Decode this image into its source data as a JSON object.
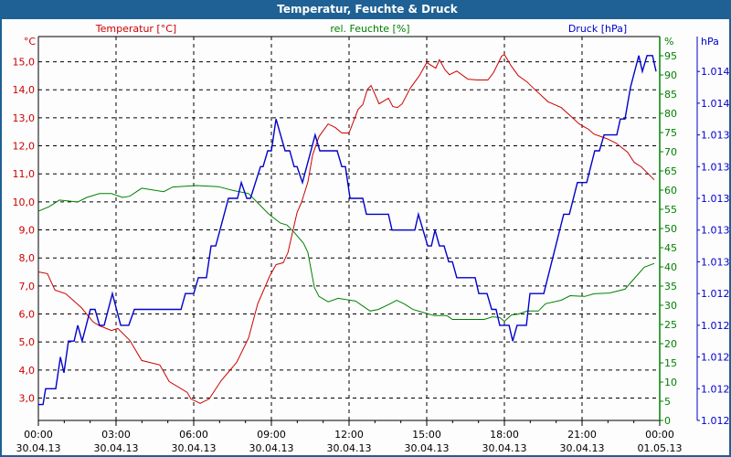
{
  "window": {
    "title": "Temperatur, Feuchte & Druck"
  },
  "colors": {
    "temperature": "#cc0000",
    "humidity": "#008000",
    "pressure": "#0000cc",
    "titlebar": "#1f6194",
    "grid": "#000000"
  },
  "chart_data": {
    "type": "line",
    "title": "Temperatur, Feuchte & Druck",
    "grid": true,
    "x": {
      "unit": "hours since 30.04.13 00:00",
      "range": [
        0,
        24
      ],
      "ticks": [
        {
          "time": "00:00",
          "date": "30.04.13"
        },
        {
          "time": "03:00",
          "date": "30.04.13"
        },
        {
          "time": "06:00",
          "date": "30.04.13"
        },
        {
          "time": "09:00",
          "date": "30.04.13"
        },
        {
          "time": "12:00",
          "date": "30.04.13"
        },
        {
          "time": "15:00",
          "date": "30.04.13"
        },
        {
          "time": "18:00",
          "date": "30.04.13"
        },
        {
          "time": "21:00",
          "date": "30.04.13"
        },
        {
          "time": "00:00",
          "date": "01.05.13"
        }
      ]
    },
    "axes": {
      "temperature": {
        "legend": "Temperatur [°C]",
        "unit": "°C",
        "side": "left",
        "ticks": [
          "3,0",
          "4,0",
          "5,0",
          "6,0",
          "7,0",
          "8,0",
          "9,0",
          "10,0",
          "11,0",
          "12,0",
          "13,0",
          "14,0",
          "15,0"
        ],
        "range": [
          2.2,
          15.9
        ]
      },
      "humidity": {
        "legend": "rel. Feuchte [%]",
        "unit": "%",
        "side": "right",
        "ticks": [
          "0",
          "5",
          "10",
          "15",
          "20",
          "25",
          "30",
          "35",
          "40",
          "45",
          "50",
          "55",
          "60",
          "65",
          "70",
          "75",
          "80",
          "85",
          "90",
          "95"
        ],
        "range": [
          0,
          100
        ]
      },
      "pressure": {
        "legend": "Druck [hPa]",
        "unit": "hPa",
        "side": "far-right",
        "ticks": [
          "1.012",
          "1.012",
          "1.012",
          "1.012",
          "1.012",
          "1.013",
          "1.013",
          "1.013",
          "1.013",
          "1.013",
          "1.014",
          "1.014"
        ],
        "range": [
          1.0116,
          1.01402
        ]
      }
    },
    "series": [
      {
        "name": "Temperatur [°C]",
        "axis": "temperature",
        "points": [
          [
            0,
            7.5
          ],
          [
            0.35,
            7.44
          ],
          [
            0.64,
            6.85
          ],
          [
            1.06,
            6.72
          ],
          [
            1.66,
            6.23
          ],
          [
            2.12,
            5.71
          ],
          [
            2.36,
            5.58
          ],
          [
            2.82,
            5.41
          ],
          [
            3.07,
            5.48
          ],
          [
            3.53,
            5.06
          ],
          [
            3.99,
            4.34
          ],
          [
            4.69,
            4.18
          ],
          [
            5.05,
            3.59
          ],
          [
            5.75,
            3.2
          ],
          [
            5.89,
            2.97
          ],
          [
            6.25,
            2.81
          ],
          [
            6.6,
            2.97
          ],
          [
            7.06,
            3.62
          ],
          [
            7.66,
            4.27
          ],
          [
            8.12,
            5.15
          ],
          [
            8.47,
            6.36
          ],
          [
            8.93,
            7.34
          ],
          [
            9.18,
            7.76
          ],
          [
            9.46,
            7.83
          ],
          [
            9.64,
            8.19
          ],
          [
            9.99,
            9.62
          ],
          [
            10.16,
            9.98
          ],
          [
            10.41,
            10.7
          ],
          [
            10.59,
            11.67
          ],
          [
            10.84,
            12.33
          ],
          [
            11.19,
            12.78
          ],
          [
            11.47,
            12.65
          ],
          [
            11.72,
            12.46
          ],
          [
            12.0,
            12.46
          ],
          [
            12.35,
            13.3
          ],
          [
            12.53,
            13.47
          ],
          [
            12.71,
            14.02
          ],
          [
            12.85,
            14.15
          ],
          [
            13.16,
            13.5
          ],
          [
            13.52,
            13.7
          ],
          [
            13.69,
            13.4
          ],
          [
            13.87,
            13.37
          ],
          [
            14.05,
            13.5
          ],
          [
            14.36,
            14.05
          ],
          [
            14.72,
            14.51
          ],
          [
            15.0,
            14.97
          ],
          [
            15.35,
            14.77
          ],
          [
            15.49,
            15.07
          ],
          [
            15.71,
            14.71
          ],
          [
            15.88,
            14.54
          ],
          [
            16.16,
            14.67
          ],
          [
            16.59,
            14.38
          ],
          [
            16.94,
            14.35
          ],
          [
            17.36,
            14.35
          ],
          [
            17.58,
            14.61
          ],
          [
            17.89,
            15.2
          ],
          [
            18.0,
            15.26
          ],
          [
            18.25,
            14.87
          ],
          [
            18.53,
            14.51
          ],
          [
            18.88,
            14.28
          ],
          [
            19.13,
            14.05
          ],
          [
            19.69,
            13.57
          ],
          [
            20.19,
            13.37
          ],
          [
            20.54,
            13.08
          ],
          [
            20.89,
            12.78
          ],
          [
            21.25,
            12.59
          ],
          [
            21.46,
            12.42
          ],
          [
            21.95,
            12.26
          ],
          [
            22.31,
            12.1
          ],
          [
            22.76,
            11.77
          ],
          [
            23.01,
            11.41
          ],
          [
            23.29,
            11.25
          ],
          [
            23.79,
            10.79
          ]
        ]
      },
      {
        "name": "rel. Feuchte [%]",
        "axis": "humidity",
        "points": [
          [
            0,
            54.5
          ],
          [
            0.42,
            55.7
          ],
          [
            0.81,
            57.4
          ],
          [
            1.52,
            56.9
          ],
          [
            1.87,
            58.1
          ],
          [
            2.36,
            59.1
          ],
          [
            2.82,
            59.1
          ],
          [
            3.25,
            58.1
          ],
          [
            3.53,
            58.4
          ],
          [
            3.99,
            60.5
          ],
          [
            4.84,
            59.6
          ],
          [
            5.19,
            60.8
          ],
          [
            6.11,
            61.2
          ],
          [
            6.95,
            60.9
          ],
          [
            7.52,
            59.9
          ],
          [
            8.12,
            59.1
          ],
          [
            8.47,
            56.7
          ],
          [
            8.89,
            53.8
          ],
          [
            9.35,
            51.4
          ],
          [
            9.6,
            50.9
          ],
          [
            9.88,
            49.0
          ],
          [
            10.24,
            46.2
          ],
          [
            10.41,
            43.8
          ],
          [
            10.66,
            34.7
          ],
          [
            10.84,
            32.3
          ],
          [
            11.19,
            30.9
          ],
          [
            11.58,
            31.8
          ],
          [
            12.25,
            31.1
          ],
          [
            12.81,
            28.5
          ],
          [
            13.13,
            28.9
          ],
          [
            13.59,
            30.4
          ],
          [
            13.84,
            31.3
          ],
          [
            14.12,
            30.4
          ],
          [
            14.47,
            28.9
          ],
          [
            14.93,
            28.0
          ],
          [
            15.28,
            27.3
          ],
          [
            15.78,
            27.3
          ],
          [
            15.99,
            26.3
          ],
          [
            16.59,
            26.3
          ],
          [
            17.22,
            26.3
          ],
          [
            17.54,
            27.0
          ],
          [
            17.82,
            26.8
          ],
          [
            18.0,
            25.8
          ],
          [
            18.28,
            27.5
          ],
          [
            18.53,
            27.7
          ],
          [
            18.88,
            28.5
          ],
          [
            19.31,
            28.5
          ],
          [
            19.59,
            30.4
          ],
          [
            20.19,
            31.3
          ],
          [
            20.54,
            32.5
          ],
          [
            21.11,
            32.3
          ],
          [
            21.46,
            33.0
          ],
          [
            22.06,
            33.2
          ],
          [
            22.66,
            34.2
          ],
          [
            22.84,
            35.6
          ],
          [
            23.4,
            39.9
          ],
          [
            23.79,
            40.9
          ]
        ]
      },
      {
        "name": "Druck [hPa]",
        "axis": "pressure",
        "points": [
          [
            0,
            1.0117
          ],
          [
            0.18,
            1.0117
          ],
          [
            0.28,
            1.0118
          ],
          [
            0.67,
            1.0118
          ],
          [
            0.85,
            1.012
          ],
          [
            0.99,
            1.0119
          ],
          [
            1.16,
            1.0121
          ],
          [
            1.38,
            1.0121
          ],
          [
            1.52,
            1.0122
          ],
          [
            1.69,
            1.0121
          ],
          [
            2.01,
            1.0123
          ],
          [
            2.19,
            1.0123
          ],
          [
            2.36,
            1.0122
          ],
          [
            2.54,
            1.0122
          ],
          [
            2.86,
            1.0124
          ],
          [
            3.18,
            1.0122
          ],
          [
            3.49,
            1.0122
          ],
          [
            3.71,
            1.0123
          ],
          [
            5.51,
            1.0123
          ],
          [
            5.68,
            1.0124
          ],
          [
            6.0,
            1.0124
          ],
          [
            6.18,
            1.0125
          ],
          [
            6.49,
            1.0125
          ],
          [
            6.67,
            1.0127
          ],
          [
            6.85,
            1.0127
          ],
          [
            7.34,
            1.013
          ],
          [
            7.69,
            1.013
          ],
          [
            7.84,
            1.0131
          ],
          [
            8.05,
            1.013
          ],
          [
            8.19,
            1.013
          ],
          [
            8.58,
            1.0132
          ],
          [
            8.68,
            1.0132
          ],
          [
            8.86,
            1.0133
          ],
          [
            9.0,
            1.0133
          ],
          [
            9.18,
            1.0135
          ],
          [
            9.53,
            1.0133
          ],
          [
            9.71,
            1.0133
          ],
          [
            9.88,
            1.0132
          ],
          [
            9.99,
            1.0132
          ],
          [
            10.2,
            1.0131
          ],
          [
            10.69,
            1.0134
          ],
          [
            10.87,
            1.0133
          ],
          [
            11.54,
            1.0133
          ],
          [
            11.72,
            1.0132
          ],
          [
            11.86,
            1.0132
          ],
          [
            12.04,
            1.013
          ],
          [
            12.53,
            1.013
          ],
          [
            12.67,
            1.0129
          ],
          [
            13.52,
            1.0129
          ],
          [
            13.66,
            1.0128
          ],
          [
            14.54,
            1.0128
          ],
          [
            14.68,
            1.0129
          ],
          [
            15.04,
            1.0127
          ],
          [
            15.18,
            1.0127
          ],
          [
            15.32,
            1.0128
          ],
          [
            15.49,
            1.0127
          ],
          [
            15.67,
            1.0127
          ],
          [
            15.85,
            1.0126
          ],
          [
            15.99,
            1.0126
          ],
          [
            16.16,
            1.0125
          ],
          [
            16.87,
            1.0125
          ],
          [
            17.01,
            1.0124
          ],
          [
            17.33,
            1.0124
          ],
          [
            17.51,
            1.0123
          ],
          [
            17.68,
            1.0123
          ],
          [
            17.82,
            1.0122
          ],
          [
            18.18,
            1.0122
          ],
          [
            18.32,
            1.0121
          ],
          [
            18.49,
            1.0122
          ],
          [
            18.85,
            1.0122
          ],
          [
            18.99,
            1.0124
          ],
          [
            19.52,
            1.0124
          ],
          [
            20.29,
            1.0129
          ],
          [
            20.51,
            1.0129
          ],
          [
            20.82,
            1.0131
          ],
          [
            21.18,
            1.0131
          ],
          [
            21.49,
            1.0133
          ],
          [
            21.67,
            1.0133
          ],
          [
            21.85,
            1.0134
          ],
          [
            22.34,
            1.0134
          ],
          [
            22.48,
            1.0135
          ],
          [
            22.66,
            1.0135
          ],
          [
            22.87,
            1.0137
          ],
          [
            23.19,
            1.0139
          ],
          [
            23.33,
            1.0138
          ],
          [
            23.51,
            1.0139
          ],
          [
            23.72,
            1.0139
          ],
          [
            23.86,
            1.0138
          ]
        ]
      }
    ]
  }
}
